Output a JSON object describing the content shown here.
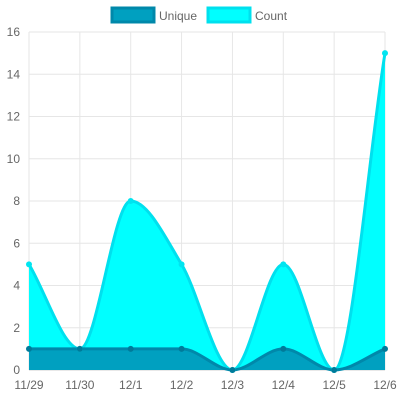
{
  "chart_data": {
    "type": "area",
    "title": "",
    "xlabel": "",
    "ylabel": "",
    "categories": [
      "11/29",
      "11/30",
      "12/1",
      "12/2",
      "12/3",
      "12/4",
      "12/5",
      "12/6"
    ],
    "ylim": [
      0,
      16
    ],
    "yticks": [
      0,
      2,
      4,
      6,
      8,
      10,
      12,
      14,
      16
    ],
    "grid": true,
    "legend_position": "top",
    "series": [
      {
        "name": "Unique",
        "values": [
          1,
          1,
          1,
          1,
          0,
          1,
          0,
          1
        ],
        "fill_color": "#00a0c0",
        "line_color": "#0088aa",
        "point_color": "#007a99"
      },
      {
        "name": "Count",
        "values": [
          5,
          1,
          8,
          5,
          0,
          5,
          0,
          15
        ],
        "fill_color": "#00ffff",
        "line_color": "#00e0ee",
        "point_color": "#00e5f0"
      }
    ]
  }
}
